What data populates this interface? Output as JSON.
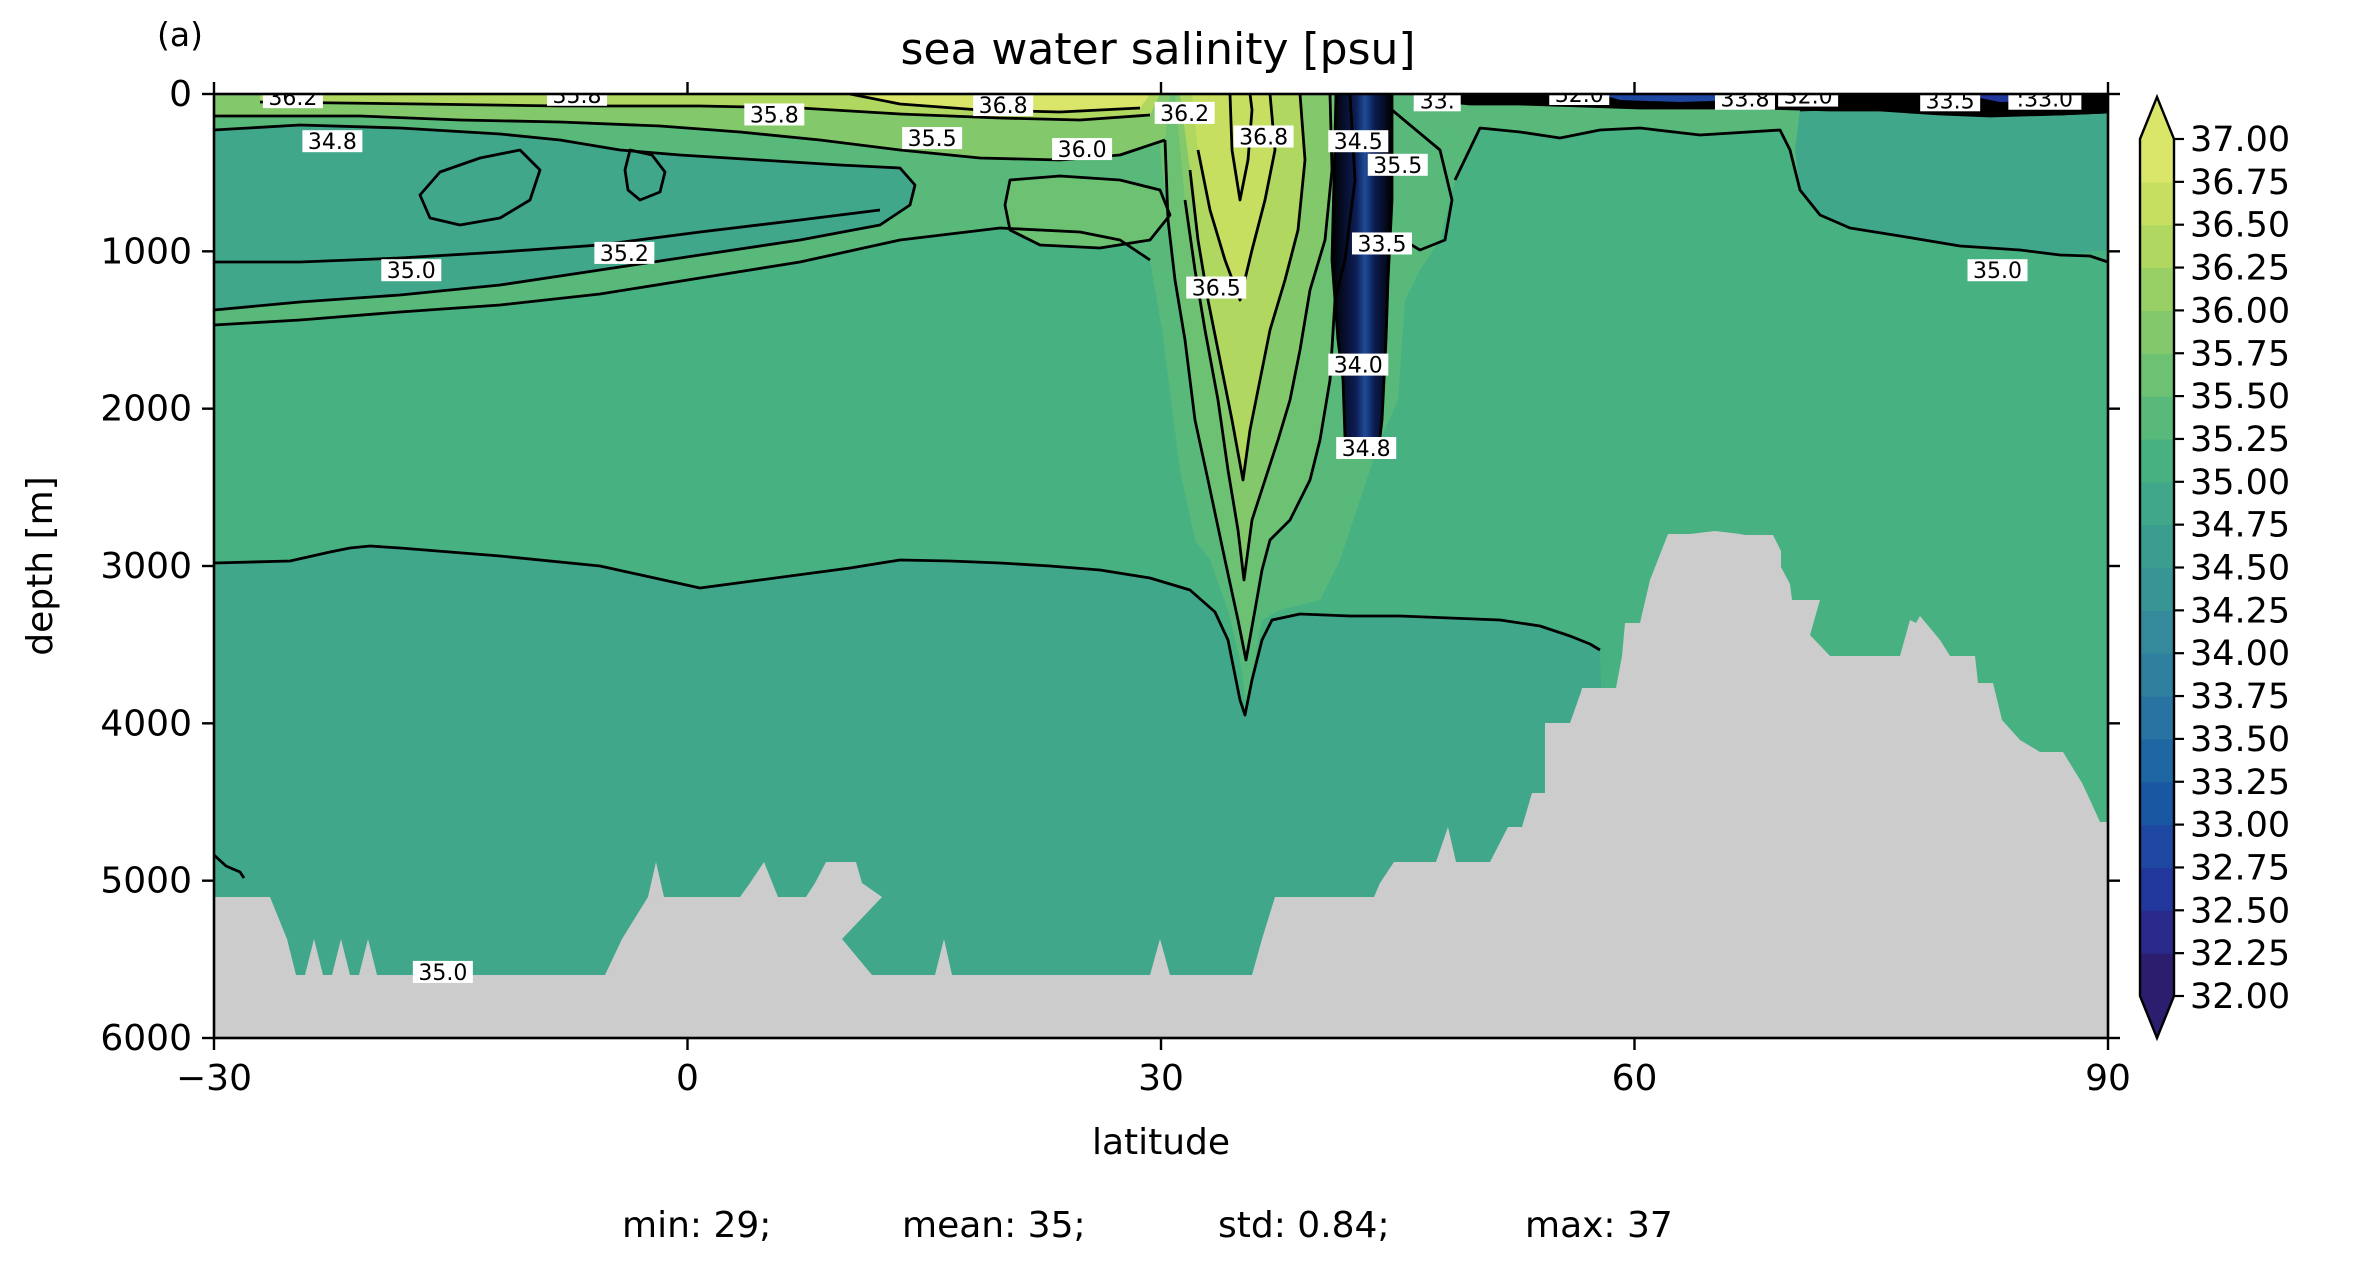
{
  "panel_label": "(a)",
  "stats": {
    "min": "min: 29;",
    "mean": "mean: 35;",
    "std": "std: 0.84;",
    "max": "max: 37"
  },
  "colors": {
    "sea_floor": "#cccccc",
    "contour_line": "#000000",
    "contour_label_bg": "#ffffff"
  },
  "chart_data": {
    "type": "heatmap",
    "title": "sea water salinity [psu]",
    "xlabel": "latitude",
    "ylabel": "depth [m]",
    "xlim": [
      -30,
      90
    ],
    "ylim": [
      6000,
      0
    ],
    "xticks": [
      -30,
      0,
      30,
      60,
      90
    ],
    "xtick_labels": [
      "−30",
      "0",
      "30",
      "60",
      "90"
    ],
    "yticks": [
      0,
      1000,
      2000,
      3000,
      4000,
      5000,
      6000
    ],
    "ytick_labels": [
      "0",
      "1000",
      "2000",
      "3000",
      "4000",
      "5000",
      "6000"
    ],
    "colorbar": {
      "levels": [
        32.0,
        32.25,
        32.5,
        32.75,
        33.0,
        33.25,
        33.5,
        33.75,
        34.0,
        34.25,
        34.5,
        34.75,
        35.0,
        35.25,
        35.5,
        35.75,
        36.0,
        36.25,
        36.5,
        36.75,
        37.0
      ],
      "tick_labels": [
        "32.00",
        "32.25",
        "32.50",
        "32.75",
        "33.00",
        "33.25",
        "33.50",
        "33.75",
        "34.00",
        "34.25",
        "34.50",
        "34.75",
        "35.00",
        "35.25",
        "35.50",
        "35.75",
        "36.00",
        "36.25",
        "36.50",
        "36.75",
        "37.00"
      ],
      "colors": [
        "#2c1d6e",
        "#292a8c",
        "#22379c",
        "#1d47a0",
        "#1a57a2",
        "#1f67a3",
        "#2873a1",
        "#2f7f9e",
        "#348a9a",
        "#389495",
        "#3b9d90",
        "#40a78a",
        "#48b182",
        "#58b97a",
        "#6cc172",
        "#83c96b",
        "#99d065",
        "#b0d860",
        "#c6df60",
        "#dae669",
        "#eee894"
      ],
      "extend": "both"
    },
    "contour_labels": [
      {
        "text": "36.2",
        "lat": -25,
        "depth": 20
      },
      {
        "text": "35.8",
        "lat": -7,
        "depth": 5
      },
      {
        "text": "35.8",
        "lat": 5.5,
        "depth": 130
      },
      {
        "text": "36.8",
        "lat": 20,
        "depth": 70
      },
      {
        "text": "34.8",
        "lat": -22.5,
        "depth": 300
      },
      {
        "text": "35.5",
        "lat": 15.5,
        "depth": 280
      },
      {
        "text": "36.0",
        "lat": 25,
        "depth": 350
      },
      {
        "text": "36.2",
        "lat": 31.5,
        "depth": 120
      },
      {
        "text": "36.8",
        "lat": 36.5,
        "depth": 270
      },
      {
        "text": "34.5",
        "lat": 42.5,
        "depth": 300
      },
      {
        "text": "35.5",
        "lat": 45,
        "depth": 450
      },
      {
        "text": "33.5",
        "lat": 44,
        "depth": 950
      },
      {
        "text": "33.",
        "lat": 47.5,
        "depth": 40
      },
      {
        "text": "32.0",
        "lat": 56.5,
        "depth": 0
      },
      {
        "text": "33.8",
        "lat": 67,
        "depth": 30
      },
      {
        "text": "32.0",
        "lat": 71,
        "depth": 10
      },
      {
        "text": "33.5",
        "lat": 80,
        "depth": 40
      },
      {
        "text": ":33.0",
        "lat": 86,
        "depth": 30
      },
      {
        "text": "35.0",
        "lat": -17.5,
        "depth": 1120
      },
      {
        "text": "35.2",
        "lat": -4,
        "depth": 1010
      },
      {
        "text": "36.5",
        "lat": 33.5,
        "depth": 1230
      },
      {
        "text": "34.0",
        "lat": 42.5,
        "depth": 1720
      },
      {
        "text": "34.8",
        "lat": 43,
        "depth": 2250
      },
      {
        "text": "35.0",
        "lat": 83,
        "depth": 1120
      },
      {
        "text": "35.0",
        "lat": -15.5,
        "depth": 5580
      }
    ]
  }
}
